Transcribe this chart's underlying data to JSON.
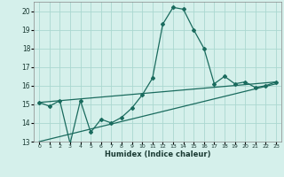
{
  "xlabel": "Humidex (Indice chaleur)",
  "ylabel": "",
  "bg_color": "#d5f0eb",
  "grid_color": "#aad8d0",
  "line_color": "#1a6b5e",
  "xlim": [
    -0.5,
    23.5
  ],
  "ylim": [
    13,
    20.5
  ],
  "yticks": [
    13,
    14,
    15,
    16,
    17,
    18,
    19,
    20
  ],
  "xticks": [
    0,
    1,
    2,
    3,
    4,
    5,
    6,
    7,
    8,
    9,
    10,
    11,
    12,
    13,
    14,
    15,
    16,
    17,
    18,
    19,
    20,
    21,
    22,
    23
  ],
  "series1_x": [
    0,
    1,
    2,
    3,
    4,
    5,
    6,
    7,
    8,
    9,
    10,
    11,
    12,
    13,
    14,
    15,
    16,
    17,
    18,
    19,
    20,
    21,
    22,
    23
  ],
  "series1_y": [
    15.1,
    14.9,
    15.2,
    12.9,
    15.2,
    13.5,
    14.2,
    14.0,
    14.3,
    14.8,
    15.5,
    16.4,
    19.3,
    20.2,
    20.1,
    19.0,
    18.0,
    16.1,
    16.5,
    16.1,
    16.2,
    15.9,
    16.0,
    16.2
  ],
  "series2_x": [
    0,
    23
  ],
  "series2_y": [
    15.1,
    16.2
  ],
  "series3_x": [
    0,
    23
  ],
  "series3_y": [
    13.0,
    16.1
  ]
}
